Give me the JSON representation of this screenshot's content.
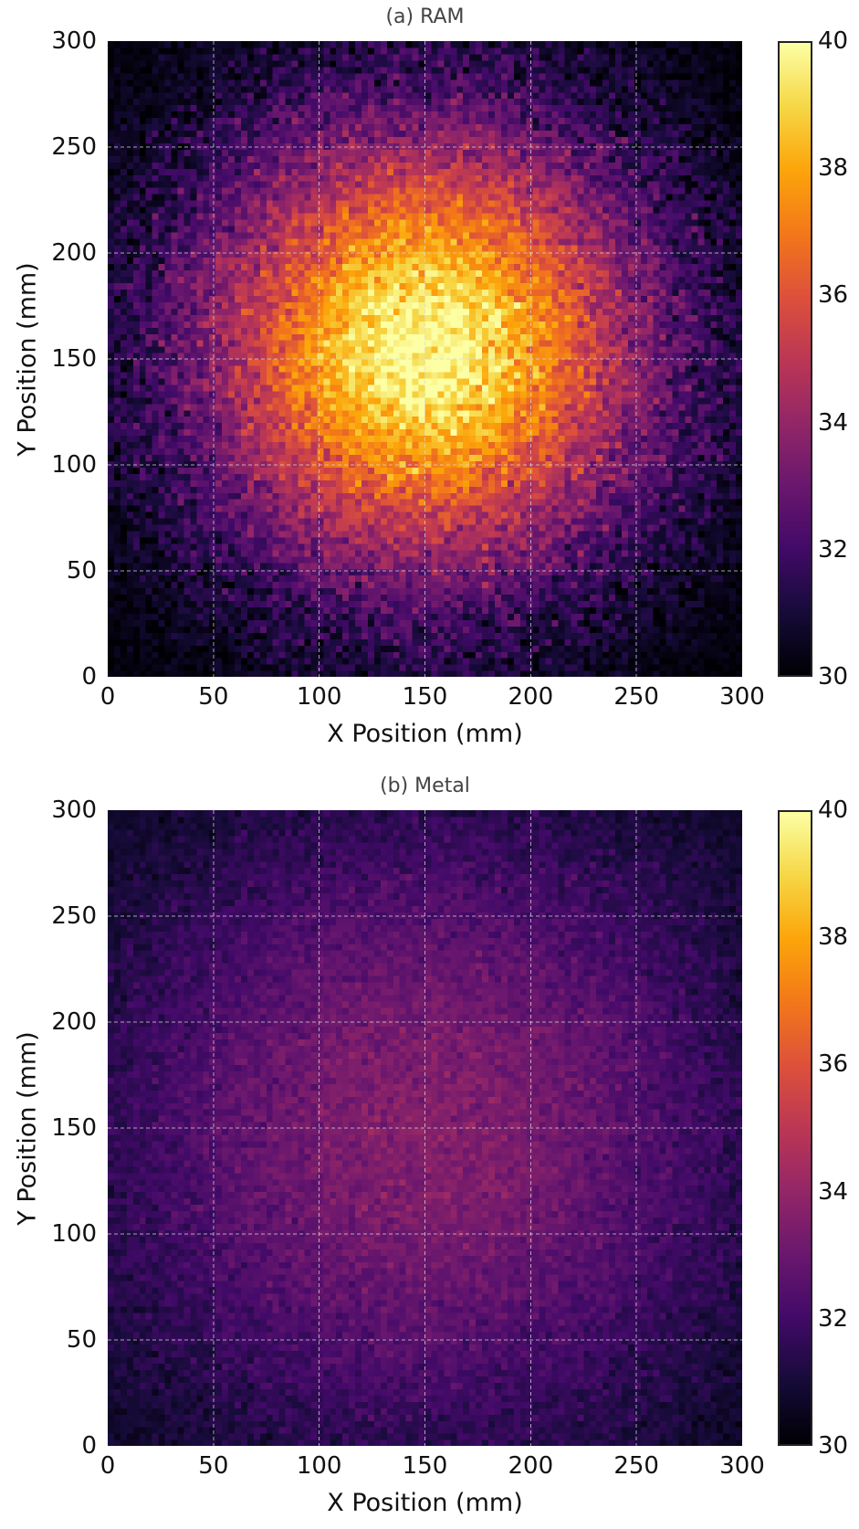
{
  "chart_data": [
    {
      "type": "heatmap",
      "title": "(a) RAM",
      "xlabel": "X Position (mm)",
      "ylabel": "Y Position (mm)",
      "xlim": [
        0,
        300
      ],
      "ylim": [
        0,
        300
      ],
      "xticks": [
        "0",
        "50",
        "100",
        "150",
        "200",
        "250",
        "300"
      ],
      "yticks": [
        "0",
        "50",
        "100",
        "150",
        "200",
        "250",
        "300"
      ],
      "grid": true,
      "colormap": "inferno",
      "colorbar": {
        "range": [
          30,
          40
        ],
        "ticks": [
          "30",
          "32",
          "34",
          "36",
          "38",
          "40"
        ]
      },
      "grid_cells": 100,
      "field": {
        "model": "gaussian",
        "center_mm": [
          150,
          155
        ],
        "baseline": 30,
        "peak": 40,
        "sigma_mm": 72,
        "noise": 1.0
      }
    },
    {
      "type": "heatmap",
      "title": "(b) Metal",
      "xlabel": "X Position (mm)",
      "ylabel": "Y Position (mm)",
      "xlim": [
        0,
        300
      ],
      "ylim": [
        0,
        300
      ],
      "xticks": [
        "0",
        "50",
        "100",
        "150",
        "200",
        "250",
        "300"
      ],
      "yticks": [
        "0",
        "50",
        "100",
        "150",
        "200",
        "250",
        "300"
      ],
      "grid": true,
      "colormap": "inferno",
      "colorbar": {
        "range": [
          30,
          40
        ],
        "ticks": [
          "30",
          "32",
          "34",
          "36",
          "38",
          "40"
        ]
      },
      "grid_cells": 100,
      "field": {
        "model": "gaussian",
        "center_mm": [
          150,
          150
        ],
        "baseline": 30,
        "peak": 33.6,
        "sigma_mm": 115,
        "noise": 0.45
      }
    }
  ]
}
